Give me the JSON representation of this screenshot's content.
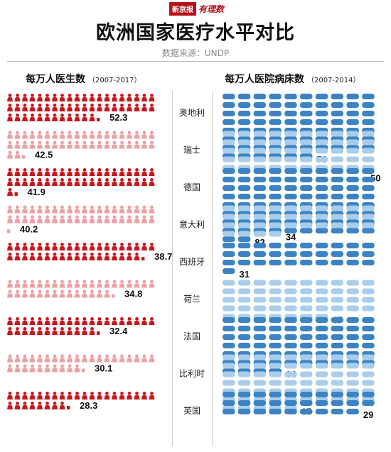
{
  "header": {
    "logo_brand": "新京报",
    "logo_sub": "有理数",
    "title": "欧洲国家医疗水平对比",
    "source": "数据来源：UNDP"
  },
  "panels": {
    "left": {
      "title": "每万人医生数",
      "years": "（2007-2017）"
    },
    "right": {
      "title": "每万人医院病床数",
      "years": "（2007-2014）"
    }
  },
  "colors": {
    "doctor_dark": "#c8161d",
    "doctor_light": "#eda0a4",
    "bed_dark": "#3b83c4",
    "bed_light": "#a9cdea"
  },
  "chart_data": [
    {
      "type": "bar",
      "title": "每万人医生数（2007-2017）",
      "categories": [
        "奥地利",
        "瑞士",
        "德国",
        "意大利",
        "西班牙",
        "荷兰",
        "法国",
        "比利时",
        "英国"
      ],
      "values": [
        52.3,
        42.5,
        41.9,
        40.2,
        38.7,
        34.8,
        32.4,
        30.1,
        28.3
      ]
    },
    {
      "type": "bar",
      "title": "每万人医院病床数（2007-2014）",
      "categories": [
        "奥地利",
        "瑞士",
        "德国",
        "意大利",
        "西班牙",
        "荷兰",
        "法国",
        "比利时",
        "英国"
      ],
      "values": [
        76,
        50,
        82,
        34,
        31,
        47,
        64,
        65,
        29
      ]
    }
  ]
}
